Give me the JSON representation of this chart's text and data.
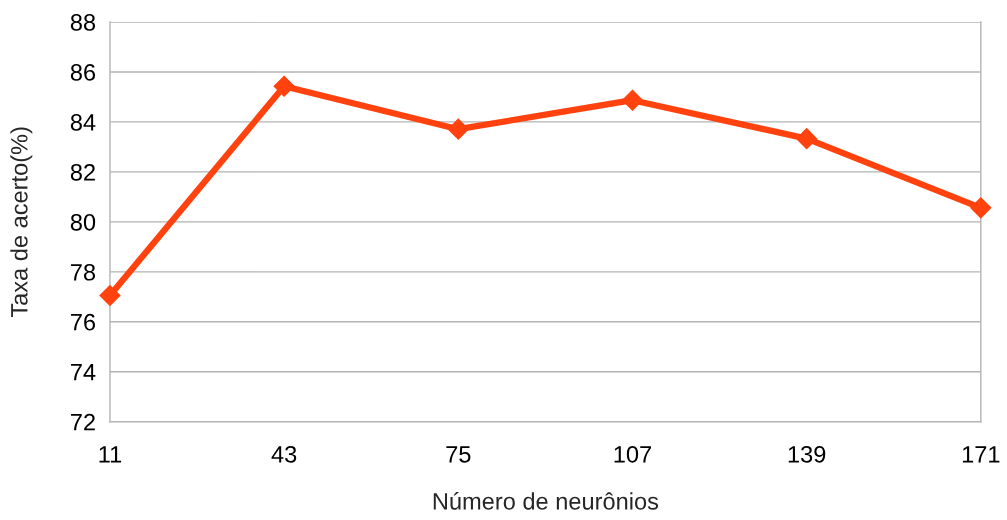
{
  "chart_data": {
    "type": "line",
    "xlabel": "Número de neurônios",
    "ylabel": "Taxa de acerto(%)",
    "x": [
      11,
      43,
      75,
      107,
      139,
      171
    ],
    "series": [
      {
        "color": "#ff420e",
        "values": [
          77.05,
          85.43,
          83.71,
          84.87,
          83.33,
          80.56
        ]
      }
    ],
    "xlim": [
      11,
      171
    ],
    "xticks": [
      11,
      43,
      75,
      107,
      139,
      171
    ],
    "ylim": [
      72,
      88
    ],
    "yticks": [
      72,
      74,
      76,
      78,
      80,
      82,
      84,
      86,
      88
    ],
    "grid": "y",
    "marker": "diamond",
    "line_style": "solid"
  }
}
